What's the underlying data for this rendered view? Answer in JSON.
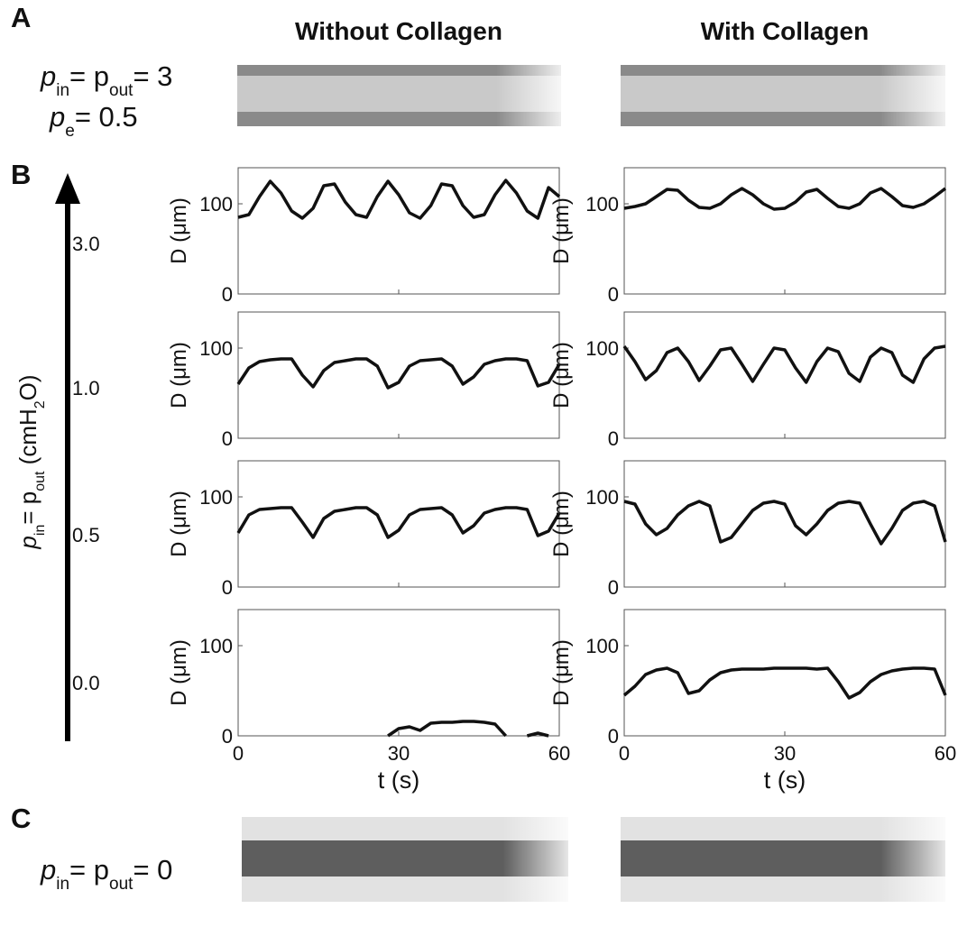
{
  "panel_labels": [
    "A",
    "B",
    "C"
  ],
  "column_titles": [
    "Without Collagen",
    "With Collagen"
  ],
  "panel_a": {
    "line1": [
      "p",
      "in",
      "= p",
      "out",
      "= 3"
    ],
    "line2": [
      "p",
      "e",
      "= 0.5"
    ]
  },
  "panel_c": {
    "line1": [
      "p",
      "in",
      "= p",
      "out",
      "= 0"
    ]
  },
  "pressure_axis": {
    "label": [
      "p",
      "in",
      "= p",
      "out",
      " (cmH",
      "2",
      "O)"
    ],
    "levels": [
      "3.0",
      "1.0",
      "0.5",
      "0.0"
    ]
  },
  "chart_data": [
    {
      "type": "line",
      "ylabel": "D (μm)",
      "xlim": [
        0,
        60
      ],
      "ylim": [
        0,
        140
      ],
      "xticks": [
        0,
        30,
        60
      ],
      "yticks": [
        0,
        100
      ],
      "x": [
        0,
        2,
        4,
        6,
        8,
        10,
        12,
        14,
        16,
        18,
        20,
        22,
        24,
        26,
        28,
        30,
        32,
        34,
        36,
        38,
        40,
        42,
        44,
        46,
        48,
        50,
        52,
        54,
        56,
        58,
        60
      ],
      "series": [
        {
          "color": "#111111",
          "values": [
            85,
            88,
            108,
            125,
            112,
            92,
            84,
            95,
            120,
            122,
            102,
            88,
            85,
            108,
            125,
            110,
            90,
            84,
            98,
            122,
            120,
            98,
            85,
            88,
            110,
            126,
            112,
            92,
            84,
            118,
            108
          ]
        }
      ]
    },
    {
      "type": "line",
      "ylabel": "D (μm)",
      "xlim": [
        0,
        60
      ],
      "ylim": [
        0,
        140
      ],
      "xticks": [
        0,
        30,
        60
      ],
      "yticks": [
        0,
        100
      ],
      "x": [
        0,
        2,
        4,
        6,
        8,
        10,
        12,
        14,
        16,
        18,
        20,
        22,
        24,
        26,
        28,
        30,
        32,
        34,
        36,
        38,
        40,
        42,
        44,
        46,
        48,
        50,
        52,
        54,
        56,
        58,
        60
      ],
      "series": [
        {
          "color": "#111111",
          "values": [
            95,
            97,
            100,
            108,
            116,
            115,
            104,
            96,
            95,
            100,
            110,
            117,
            110,
            100,
            94,
            95,
            102,
            113,
            116,
            106,
            97,
            95,
            100,
            112,
            117,
            108,
            98,
            96,
            100,
            108,
            117
          ]
        }
      ]
    },
    {
      "type": "line",
      "ylabel": "D (μm)",
      "xlim": [
        0,
        60
      ],
      "ylim": [
        0,
        140
      ],
      "xticks": [
        0,
        30,
        60
      ],
      "yticks": [
        0,
        100
      ],
      "x": [
        0,
        2,
        4,
        6,
        8,
        10,
        12,
        14,
        16,
        18,
        20,
        22,
        24,
        26,
        28,
        30,
        32,
        34,
        36,
        38,
        40,
        42,
        44,
        46,
        48,
        50,
        52,
        54,
        56,
        58,
        60
      ],
      "series": [
        {
          "color": "#111111",
          "values": [
            60,
            78,
            85,
            87,
            88,
            88,
            70,
            57,
            75,
            84,
            86,
            88,
            88,
            80,
            56,
            62,
            80,
            86,
            87,
            88,
            80,
            60,
            68,
            82,
            86,
            88,
            88,
            86,
            58,
            62,
            82
          ]
        }
      ]
    },
    {
      "type": "line",
      "ylabel": "D (μm)",
      "xlim": [
        0,
        60
      ],
      "ylim": [
        0,
        140
      ],
      "xticks": [
        0,
        30,
        60
      ],
      "yticks": [
        0,
        100
      ],
      "x": [
        0,
        2,
        4,
        6,
        8,
        10,
        12,
        14,
        16,
        18,
        20,
        22,
        24,
        26,
        28,
        30,
        32,
        34,
        36,
        38,
        40,
        42,
        44,
        46,
        48,
        50,
        52,
        54,
        56,
        58,
        60
      ],
      "series": [
        {
          "color": "#111111",
          "values": [
            102,
            85,
            65,
            75,
            95,
            100,
            85,
            64,
            80,
            98,
            100,
            82,
            63,
            82,
            100,
            98,
            78,
            62,
            85,
            100,
            96,
            72,
            63,
            90,
            100,
            95,
            70,
            62,
            88,
            100,
            102
          ]
        }
      ]
    },
    {
      "type": "line",
      "ylabel": "D (μm)",
      "xlim": [
        0,
        60
      ],
      "ylim": [
        0,
        140
      ],
      "xticks": [
        0,
        30,
        60
      ],
      "yticks": [
        0,
        100
      ],
      "x": [
        0,
        2,
        4,
        6,
        8,
        10,
        12,
        14,
        16,
        18,
        20,
        22,
        24,
        26,
        28,
        30,
        32,
        34,
        36,
        38,
        40,
        42,
        44,
        46,
        48,
        50,
        52,
        54,
        56,
        58,
        60
      ],
      "series": [
        {
          "color": "#111111",
          "values": [
            60,
            80,
            86,
            87,
            88,
            88,
            72,
            55,
            76,
            84,
            86,
            88,
            88,
            80,
            55,
            63,
            80,
            86,
            87,
            88,
            80,
            60,
            68,
            82,
            86,
            88,
            88,
            86,
            57,
            62,
            82
          ]
        }
      ]
    },
    {
      "type": "line",
      "ylabel": "D (μm)",
      "xlim": [
        0,
        60
      ],
      "ylim": [
        0,
        140
      ],
      "xticks": [
        0,
        30,
        60
      ],
      "yticks": [
        0,
        100
      ],
      "x": [
        0,
        2,
        4,
        6,
        8,
        10,
        12,
        14,
        16,
        18,
        20,
        22,
        24,
        26,
        28,
        30,
        32,
        34,
        36,
        38,
        40,
        42,
        44,
        46,
        48,
        50,
        52,
        54,
        56,
        58,
        60
      ],
      "series": [
        {
          "color": "#111111",
          "values": [
            95,
            92,
            70,
            58,
            65,
            80,
            90,
            95,
            90,
            50,
            55,
            70,
            85,
            93,
            95,
            92,
            68,
            58,
            70,
            85,
            93,
            95,
            93,
            70,
            48,
            65,
            85,
            93,
            95,
            90,
            50
          ]
        }
      ]
    },
    {
      "type": "line",
      "ylabel": "D (μm)",
      "xlabel": "t (s)",
      "xlim": [
        0,
        60
      ],
      "ylim": [
        0,
        140
      ],
      "xticks": [
        0,
        30,
        60
      ],
      "yticks": [
        0,
        100
      ],
      "x": [
        0,
        2,
        4,
        6,
        8,
        10,
        12,
        14,
        16,
        18,
        20,
        22,
        24,
        26,
        28,
        30,
        32,
        34,
        36,
        38,
        40,
        42,
        44,
        46,
        48,
        50,
        52,
        54,
        56,
        58,
        60
      ],
      "series": [
        {
          "color": "#111111",
          "values": [
            null,
            null,
            null,
            null,
            null,
            null,
            null,
            null,
            null,
            null,
            null,
            null,
            null,
            null,
            0,
            8,
            10,
            6,
            14,
            15,
            15,
            16,
            16,
            15,
            13,
            0,
            null,
            0,
            3,
            0,
            null
          ]
        }
      ]
    },
    {
      "type": "line",
      "ylabel": "D (μm)",
      "xlabel": "t (s)",
      "xlim": [
        0,
        60
      ],
      "ylim": [
        0,
        140
      ],
      "xticks": [
        0,
        30,
        60
      ],
      "yticks": [
        0,
        100
      ],
      "x": [
        0,
        2,
        4,
        6,
        8,
        10,
        12,
        14,
        16,
        18,
        20,
        22,
        24,
        26,
        28,
        30,
        32,
        34,
        36,
        38,
        40,
        42,
        44,
        46,
        48,
        50,
        52,
        54,
        56,
        58,
        60
      ],
      "series": [
        {
          "color": "#111111",
          "values": [
            45,
            55,
            68,
            73,
            75,
            70,
            47,
            50,
            62,
            70,
            73,
            74,
            74,
            74,
            75,
            75,
            75,
            75,
            74,
            75,
            60,
            42,
            48,
            60,
            68,
            72,
            74,
            75,
            75,
            74,
            45
          ]
        }
      ]
    }
  ]
}
